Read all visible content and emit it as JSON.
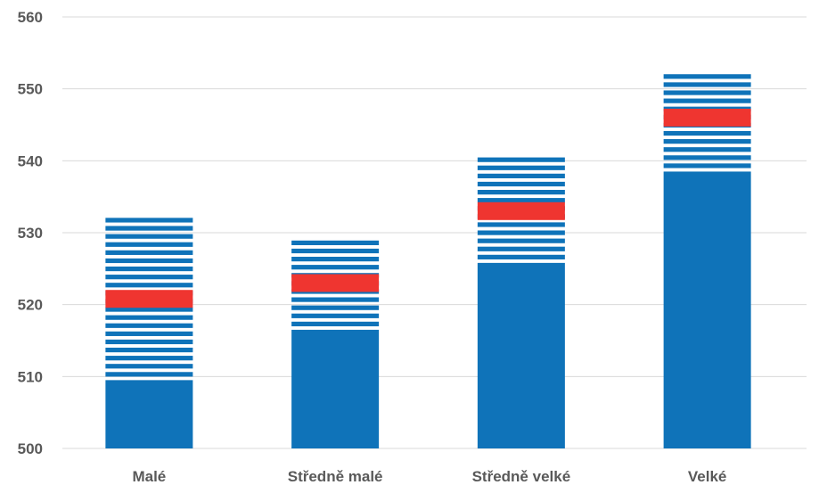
{
  "chart_data": {
    "type": "bar",
    "title": "",
    "xlabel": "",
    "ylabel": "",
    "ylim": [
      500,
      560
    ],
    "yticks": [
      "500",
      "510",
      "520",
      "530",
      "540",
      "550",
      "560"
    ],
    "grid": true,
    "categories": [
      "Malé",
      "Středně malé",
      "Středně velké",
      "Velké"
    ],
    "series": [
      {
        "role": "solid-base",
        "values": [
          509.5,
          516.5,
          525.8,
          538.5
        ]
      },
      {
        "role": "range-high",
        "values": [
          532.8,
          529.5,
          540.8,
          553.0
        ]
      },
      {
        "role": "mean",
        "values": [
          520.8,
          523.0,
          533.0,
          546.0
        ]
      }
    ],
    "colors": {
      "bar": "#0f73b9",
      "mean": "#ef3530",
      "grid": "#d9d9d9",
      "text": "#595959"
    }
  }
}
